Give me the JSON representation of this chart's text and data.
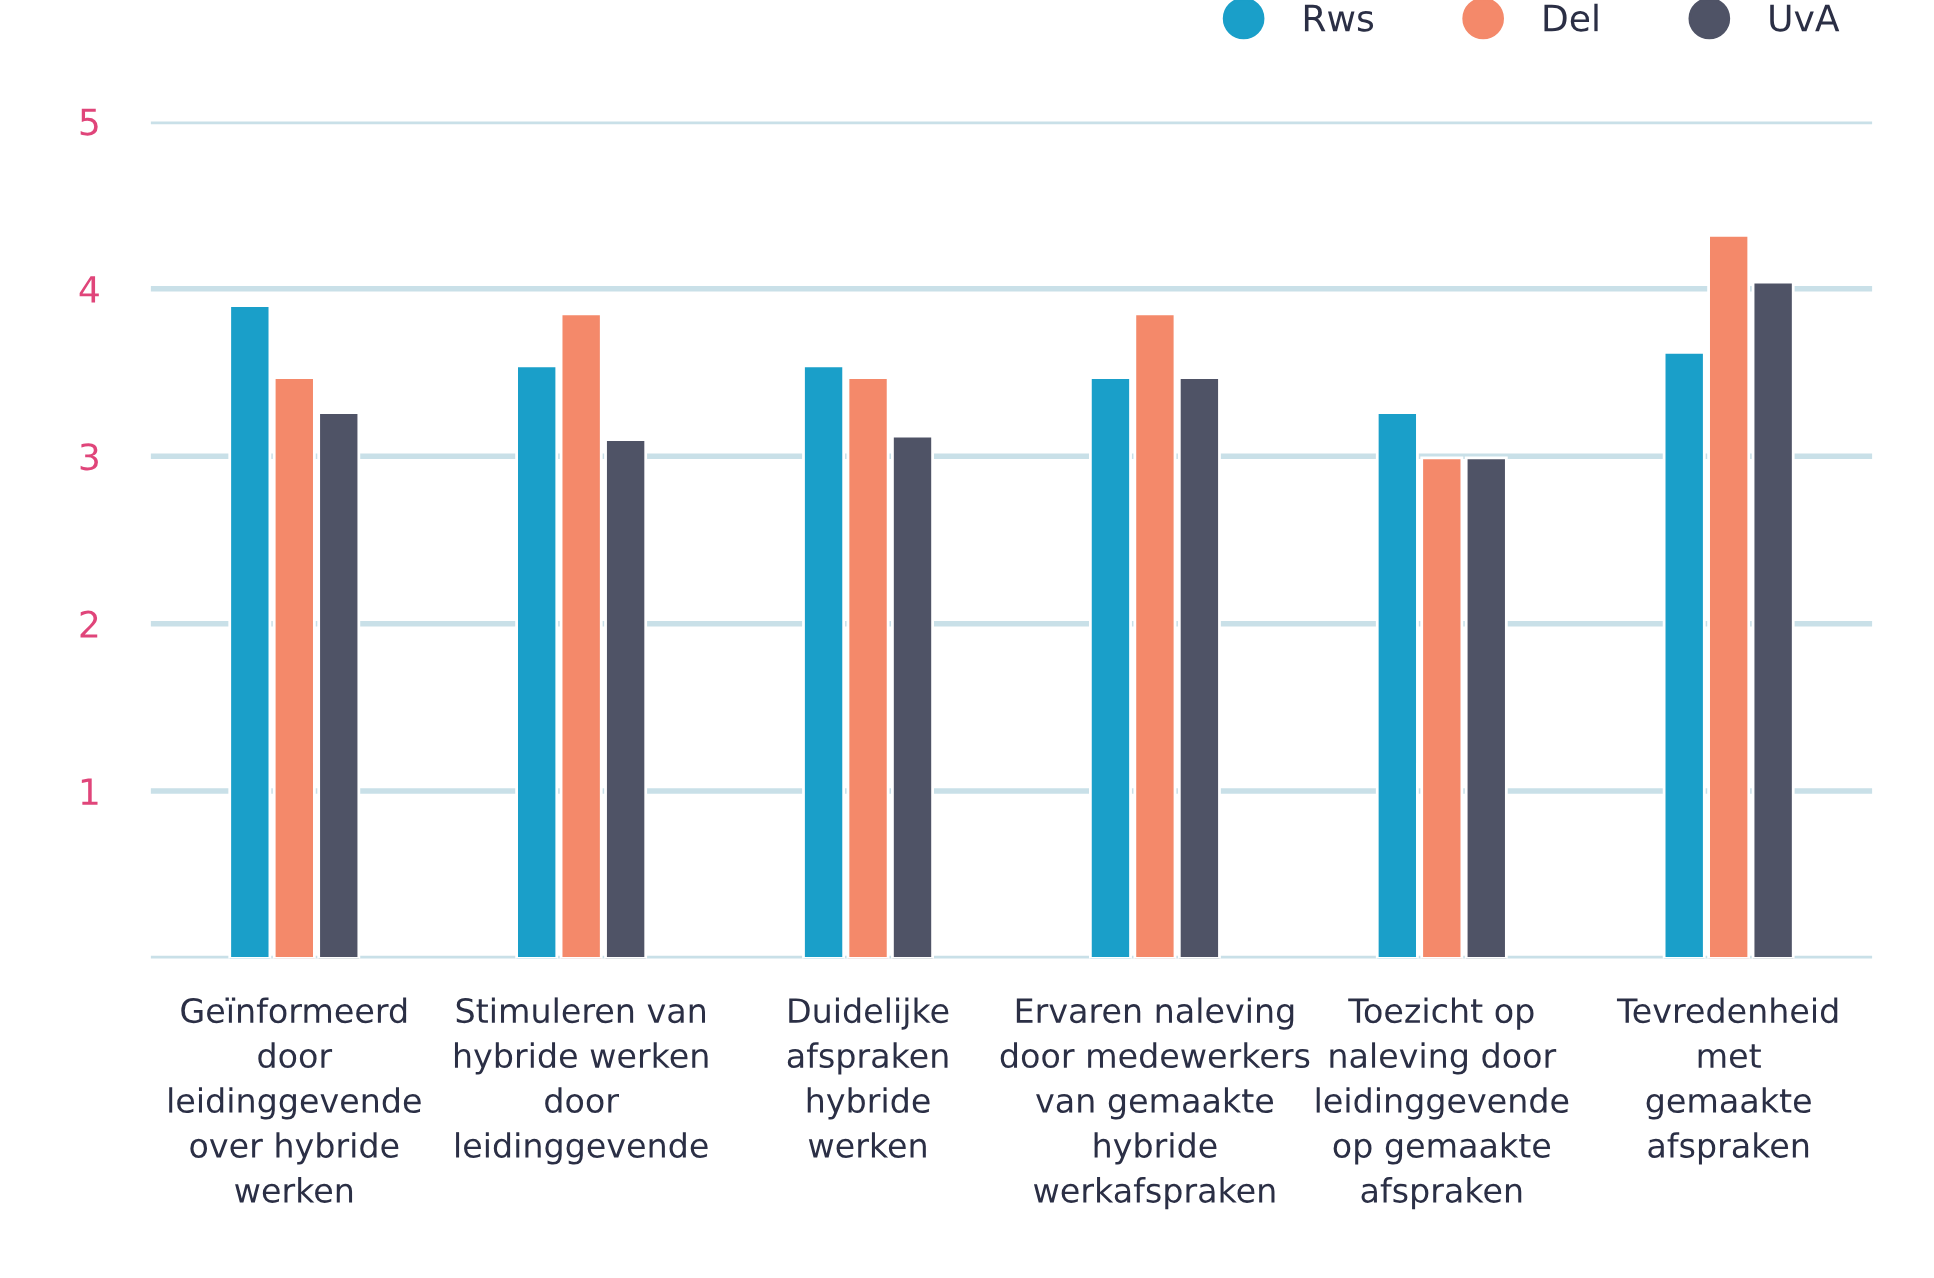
{
  "chart_data": {
    "type": "bar",
    "categories": [
      "Geïnformeerd\ndoor\nleidinggevende\nover hybride\nwerken",
      "Stimuleren van\nhybride werken\ndoor\nleidinggevende",
      "Duidelijke\nafspraken\nhybride\nwerken",
      "Ervaren naleving\ndoor medewerkers\nvan gemaakte\nhybride\nwerkafspraken",
      "Toezicht op\nnaleving door\nleidinggevende\nop gemaakte\nafspraken",
      "Tevredenheid\nmet\ngemaakte\nafspraken"
    ],
    "series": [
      {
        "name": "Rws",
        "color": "#1a9fc9",
        "values": [
          3.9,
          3.54,
          3.54,
          3.47,
          3.26,
          3.62
        ]
      },
      {
        "name": "Del",
        "color": "#f4896a",
        "values": [
          3.47,
          3.85,
          3.47,
          3.85,
          2.99,
          4.32
        ]
      },
      {
        "name": "UvA",
        "color": "#4f5366",
        "values": [
          3.26,
          3.1,
          3.12,
          3.47,
          2.99,
          4.04
        ]
      }
    ],
    "ylim": [
      0,
      5
    ],
    "yticks": [
      {
        "value": 0,
        "label": null
      },
      1,
      2,
      3,
      4,
      5
    ],
    "grid": "y",
    "legend": "top right"
  }
}
